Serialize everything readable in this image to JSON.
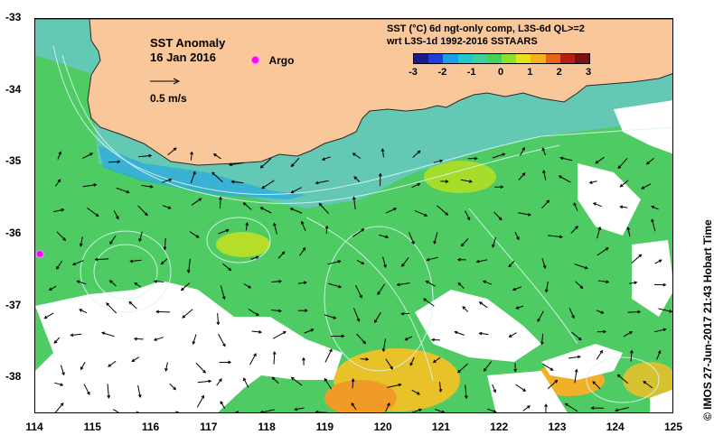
{
  "title": {
    "line1": "SST Anomaly",
    "line2": "16 Jan 2016"
  },
  "argo_legend": {
    "label": "Argo",
    "color": "#ff00ff"
  },
  "vector_scale": {
    "label": "0.5 m/s"
  },
  "product": {
    "line1": "SST (°C) 6d ngt-only comp, L3S-6d QL>=2",
    "line2": "wrt L3S-1d 1992-2016 SSTAARS"
  },
  "colorbar": {
    "ticks": [
      "-3",
      "-2",
      "-1",
      "0",
      "1",
      "2",
      "3"
    ],
    "colors": [
      "#1a1a8a",
      "#1f3fd8",
      "#1b9fe6",
      "#22c9c9",
      "#3ecf9a",
      "#44d05a",
      "#8ee02a",
      "#e8e21a",
      "#f5b21a",
      "#e8641a",
      "#b52012",
      "#7a1010"
    ]
  },
  "axes": {
    "y_ticks": [
      "-33",
      "-34",
      "-35",
      "-36",
      "-37",
      "-38"
    ],
    "x_ticks": [
      "114",
      "115",
      "116",
      "117",
      "118",
      "119",
      "120",
      "121",
      "122",
      "123",
      "124",
      "125"
    ],
    "lon_range": [
      114,
      125
    ],
    "lat_range": [
      -33,
      -38.5
    ]
  },
  "argo_float": {
    "lon": 114.08,
    "lat": -36.27
  },
  "credit": "© IMOS 27-Jun-2017 21:43 Hobart Time",
  "colors": {
    "land": "#f9c79a",
    "ocean_base": "#4fcb63",
    "shelf": "#60c7b0",
    "nodata": "#ffffff",
    "contour": "#d8f4f4"
  }
}
